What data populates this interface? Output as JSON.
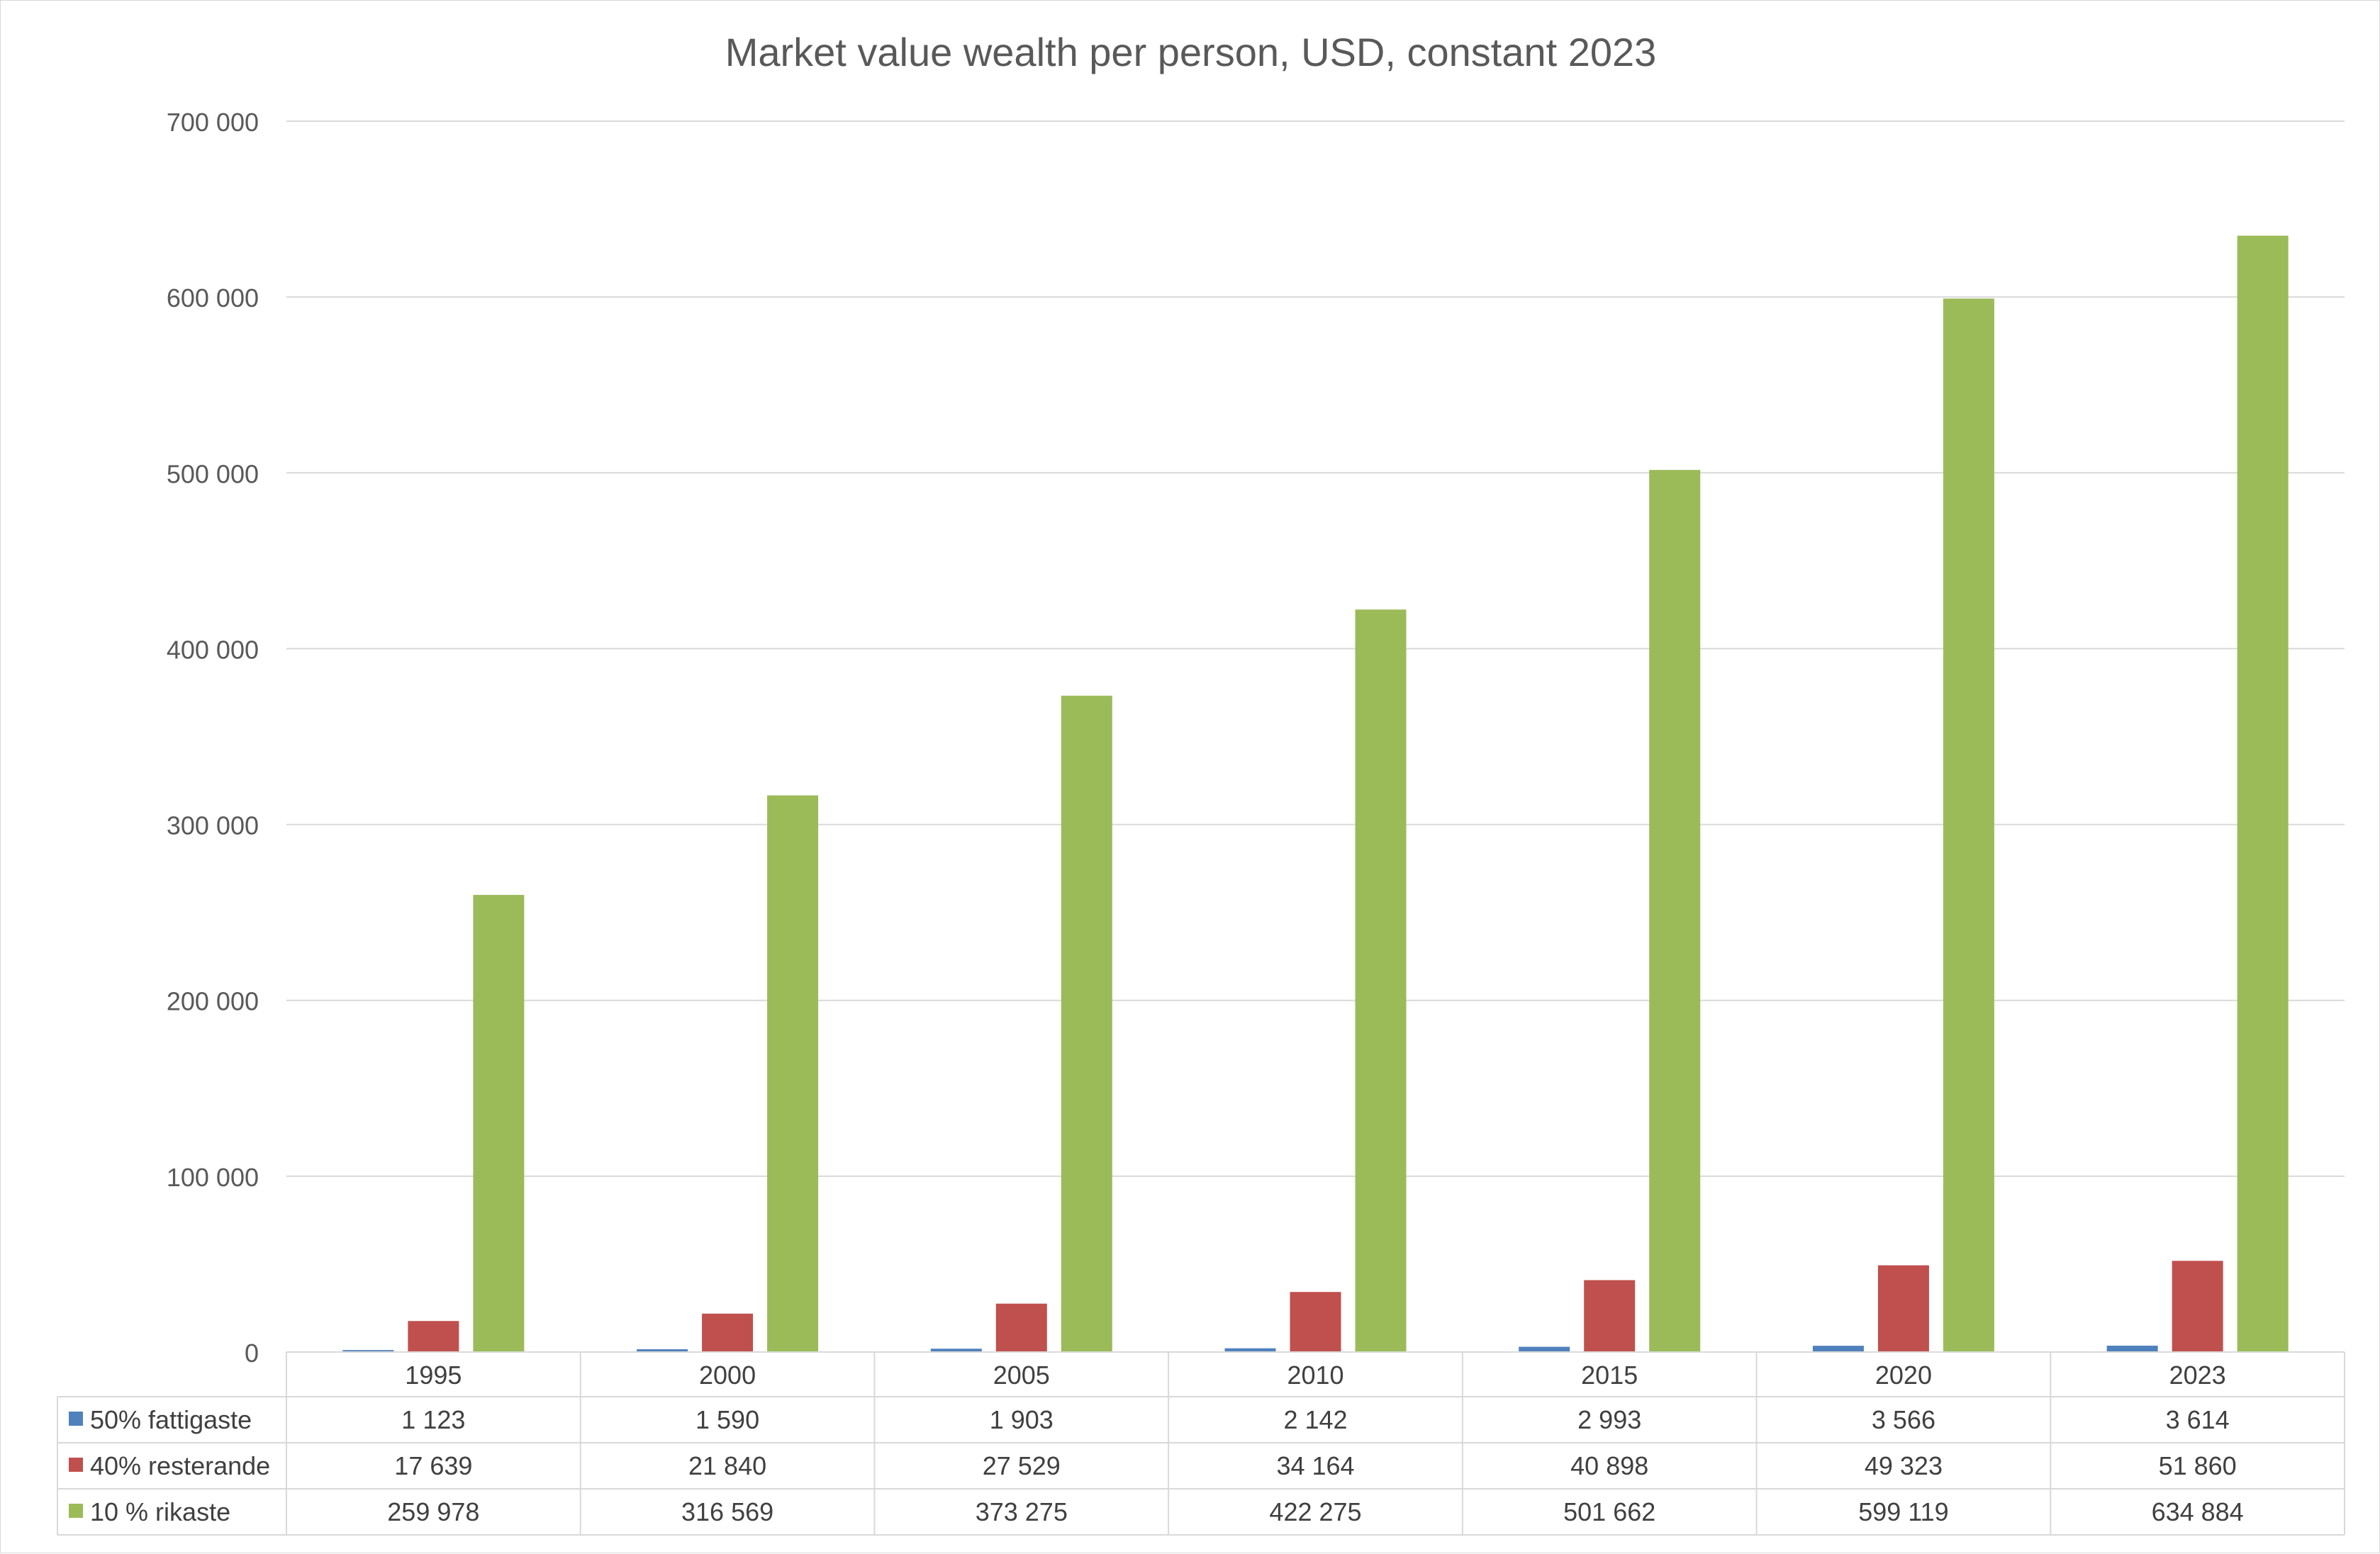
{
  "chart_data": {
    "type": "bar",
    "title": "Market value wealth per person, USD, constant 2023",
    "categories": [
      "1995",
      "2000",
      "2005",
      "2010",
      "2015",
      "2020",
      "2023"
    ],
    "series": [
      {
        "name": "50% fattigaste",
        "color": "#4f81bd",
        "values": [
          1123,
          1590,
          1903,
          2142,
          2993,
          3566,
          3614
        ],
        "labels": [
          "1 123",
          "1 590",
          "1 903",
          "2 142",
          "2 993",
          "3 566",
          "3 614"
        ]
      },
      {
        "name": "40% resterande",
        "color": "#c0504d",
        "values": [
          17639,
          21840,
          27529,
          34164,
          40898,
          49323,
          51860
        ],
        "labels": [
          "17 639",
          "21 840",
          "27 529",
          "34 164",
          "40 898",
          "49 323",
          "51 860"
        ]
      },
      {
        "name": "10 % rikaste",
        "color": "#9bbb59",
        "values": [
          259978,
          316569,
          373275,
          422275,
          501662,
          599119,
          634884
        ],
        "labels": [
          "259 978",
          "316 569",
          "373 275",
          "422 275",
          "501 662",
          "599 119",
          "634 884"
        ]
      }
    ],
    "yaxis": {
      "min": 0,
      "max": 700000,
      "step": 100000,
      "tick_labels": [
        "0",
        "100 000",
        "200 000",
        "300 000",
        "400 000",
        "500 000",
        "600 000",
        "700 000"
      ]
    },
    "xlabel": "",
    "ylabel": "",
    "grid": true,
    "legend": "data-table"
  }
}
